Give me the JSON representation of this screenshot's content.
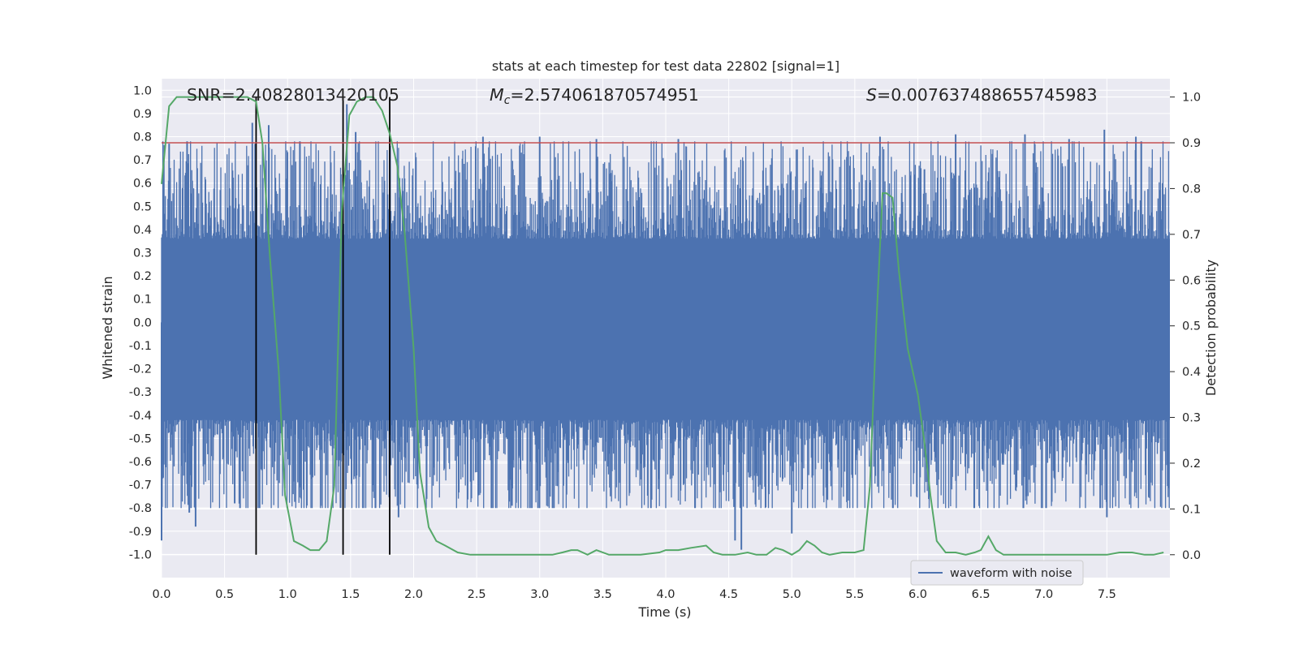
{
  "chart_data": {
    "type": "line",
    "title": "stats at each timestep for test data 22802 [signal=1]",
    "xlabel": "Time (s)",
    "ylabel_left": "Whitened strain",
    "ylabel_right": "Detection probability",
    "xlim": [
      0.0,
      8.0
    ],
    "ylim_left": [
      -1.1,
      1.05
    ],
    "ylim_right": [
      -0.05,
      1.04
    ],
    "x_ticks": [
      "0.0",
      "0.5",
      "1.0",
      "1.5",
      "2.0",
      "2.5",
      "3.0",
      "3.5",
      "4.0",
      "4.5",
      "5.0",
      "5.5",
      "6.0",
      "6.5",
      "7.0",
      "7.5"
    ],
    "y_ticks_left": [
      "1.0",
      "0.9",
      "0.8",
      "0.7",
      "0.6",
      "0.5",
      "0.4",
      "0.3",
      "0.2",
      "0.1",
      "0.0",
      "-0.1",
      "-0.2",
      "-0.3",
      "-0.4",
      "-0.5",
      "-0.6",
      "-0.7",
      "-0.8",
      "-0.9",
      "-1.0"
    ],
    "y_ticks_right": [
      "1.0",
      "0.9",
      "0.8",
      "0.7",
      "0.6",
      "0.5",
      "0.4",
      "0.3",
      "0.2",
      "0.1",
      "0.0"
    ],
    "annotations": {
      "snr": "SNR=2.40828013420105",
      "mc_symbol": "M",
      "mc_sub": "c",
      "mc_value": "=2.574061870574951",
      "s_symbol": "S",
      "s_value": "=0.007637488655745983"
    },
    "legend": {
      "label": "waveform with noise",
      "location": "lower-right"
    },
    "threshold": {
      "value": 0.9,
      "axis": "right"
    },
    "vertical_markers": [
      0.75,
      1.44,
      1.81
    ],
    "waveform": {
      "name": "waveform with noise",
      "n_samples": 1600,
      "core_range": [
        -0.42,
        0.36
      ],
      "spikes": [
        {
          "t": 0.0,
          "v": -0.94
        },
        {
          "t": 0.06,
          "v": 0.77
        },
        {
          "t": 0.22,
          "v": -0.82
        },
        {
          "t": 0.27,
          "v": -0.88
        },
        {
          "t": 0.58,
          "v": -0.78
        },
        {
          "t": 0.72,
          "v": 0.86
        },
        {
          "t": 0.85,
          "v": 0.85
        },
        {
          "t": 1.42,
          "v": -0.8
        },
        {
          "t": 1.47,
          "v": 0.94
        },
        {
          "t": 1.54,
          "v": 0.82
        },
        {
          "t": 1.88,
          "v": -0.84
        },
        {
          "t": 2.55,
          "v": 0.8
        },
        {
          "t": 2.78,
          "v": -0.79
        },
        {
          "t": 3.0,
          "v": 0.8
        },
        {
          "t": 3.45,
          "v": 0.79
        },
        {
          "t": 4.1,
          "v": 0.79
        },
        {
          "t": 4.6,
          "v": -0.98
        },
        {
          "t": 4.55,
          "v": -0.94
        },
        {
          "t": 5.0,
          "v": -0.91
        },
        {
          "t": 5.7,
          "v": 0.8
        },
        {
          "t": 6.3,
          "v": 0.81
        },
        {
          "t": 6.85,
          "v": 0.81
        },
        {
          "t": 7.2,
          "v": 0.79
        },
        {
          "t": 7.48,
          "v": 0.83
        },
        {
          "t": 7.5,
          "v": -0.84
        },
        {
          "t": 7.73,
          "v": 0.8
        }
      ]
    },
    "probability": {
      "name": "detection probability",
      "x": [
        0.0,
        0.06,
        0.12,
        0.2,
        0.3,
        0.4,
        0.5,
        0.6,
        0.68,
        0.75,
        0.8,
        0.86,
        0.93,
        0.98,
        1.05,
        1.12,
        1.18,
        1.25,
        1.31,
        1.37,
        1.43,
        1.49,
        1.55,
        1.62,
        1.68,
        1.75,
        1.81,
        1.87,
        1.93,
        2.0,
        2.05,
        2.12,
        2.18,
        2.25,
        2.35,
        2.45,
        2.55,
        2.7,
        2.85,
        3.0,
        3.1,
        3.18,
        3.25,
        3.3,
        3.38,
        3.45,
        3.55,
        3.65,
        3.8,
        3.95,
        4.0,
        4.1,
        4.2,
        4.32,
        4.38,
        4.45,
        4.55,
        4.65,
        4.72,
        4.8,
        4.87,
        4.93,
        5.0,
        5.06,
        5.12,
        5.18,
        5.24,
        5.3,
        5.4,
        5.5,
        5.57,
        5.62,
        5.67,
        5.72,
        5.75,
        5.8,
        5.85,
        5.92,
        6.0,
        6.05,
        6.1,
        6.15,
        6.22,
        6.3,
        6.38,
        6.45,
        6.5,
        6.56,
        6.62,
        6.68,
        6.78,
        6.9,
        7.05,
        7.3,
        7.5,
        7.6,
        7.7,
        7.8,
        7.87,
        7.95
      ],
      "y": [
        0.81,
        0.98,
        1.0,
        1.0,
        1.0,
        1.0,
        1.0,
        1.0,
        1.0,
        0.99,
        0.9,
        0.65,
        0.4,
        0.13,
        0.03,
        0.02,
        0.01,
        0.01,
        0.03,
        0.15,
        0.75,
        0.96,
        0.99,
        1.0,
        1.0,
        0.97,
        0.92,
        0.85,
        0.7,
        0.45,
        0.18,
        0.06,
        0.03,
        0.02,
        0.005,
        0.0,
        0.0,
        0.0,
        0.0,
        0.0,
        0.0,
        0.005,
        0.01,
        0.01,
        0.0,
        0.01,
        0.0,
        0.0,
        0.0,
        0.005,
        0.01,
        0.01,
        0.015,
        0.02,
        0.005,
        0.0,
        0.0,
        0.005,
        0.0,
        0.0,
        0.015,
        0.01,
        0.0,
        0.01,
        0.03,
        0.02,
        0.005,
        0.0,
        0.005,
        0.005,
        0.01,
        0.15,
        0.5,
        0.79,
        0.79,
        0.78,
        0.62,
        0.45,
        0.35,
        0.25,
        0.13,
        0.03,
        0.005,
        0.005,
        0.0,
        0.005,
        0.01,
        0.04,
        0.01,
        0.0,
        0.0,
        0.0,
        0.0,
        0.0,
        0.0,
        0.005,
        0.005,
        0.0,
        0.0,
        0.005
      ]
    },
    "colors": {
      "axes_bg": "#eaeaf2",
      "grid": "#ffffff",
      "waveform": "#4c72b0",
      "probability": "#55a868",
      "threshold": "#c44e52",
      "markers": "#000000"
    }
  }
}
